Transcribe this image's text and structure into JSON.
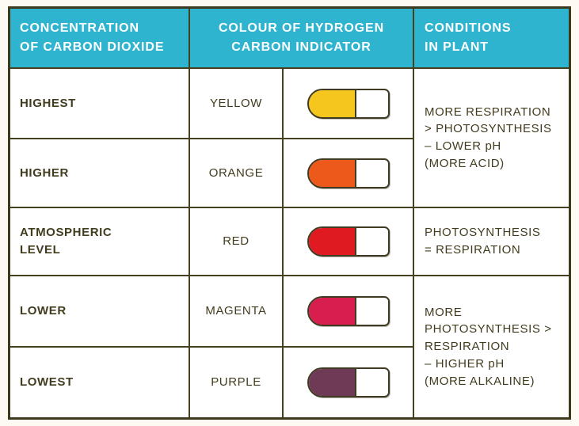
{
  "palette": {
    "header_bg": "#2fb4d0",
    "header_text": "#ffffff",
    "grid_line": "#45411f",
    "body_text": "#423c1e",
    "page_bg": "#fcfaf2"
  },
  "header": {
    "col_concentration": "CONCENTRATION\nOF CARBON DIOXIDE",
    "col_colour": "COLOUR OF HYDROGEN\nCARBON INDICATOR",
    "col_conditions": "CONDITIONS\nIN PLANT"
  },
  "rows": [
    {
      "concentration": "HIGHEST",
      "colour": "YELLOW",
      "capsule_color": "#f5c61d"
    },
    {
      "concentration": "HIGHER",
      "colour": "ORANGE",
      "capsule_color": "#ed591b"
    },
    {
      "concentration": "ATMOSPHERIC\nLEVEL",
      "colour": "RED",
      "capsule_color": "#df1b21"
    },
    {
      "concentration": "LOWER",
      "colour": "MAGENTA",
      "capsule_color": "#d71e4e"
    },
    {
      "concentration": "LOWEST",
      "colour": "PURPLE",
      "capsule_color": "#6e3a55"
    }
  ],
  "conditions": [
    {
      "text": "MORE RESPIRATION\n> PHOTOSYNTHESIS\n– LOWER pH\n(MORE ACID)"
    },
    {
      "text": "PHOTOSYNTHESIS\n= RESPIRATION"
    },
    {
      "text": "MORE\nPHOTOSYNTHESIS >\nRESPIRATION\n– HIGHER pH\n(MORE ALKALINE)"
    }
  ]
}
